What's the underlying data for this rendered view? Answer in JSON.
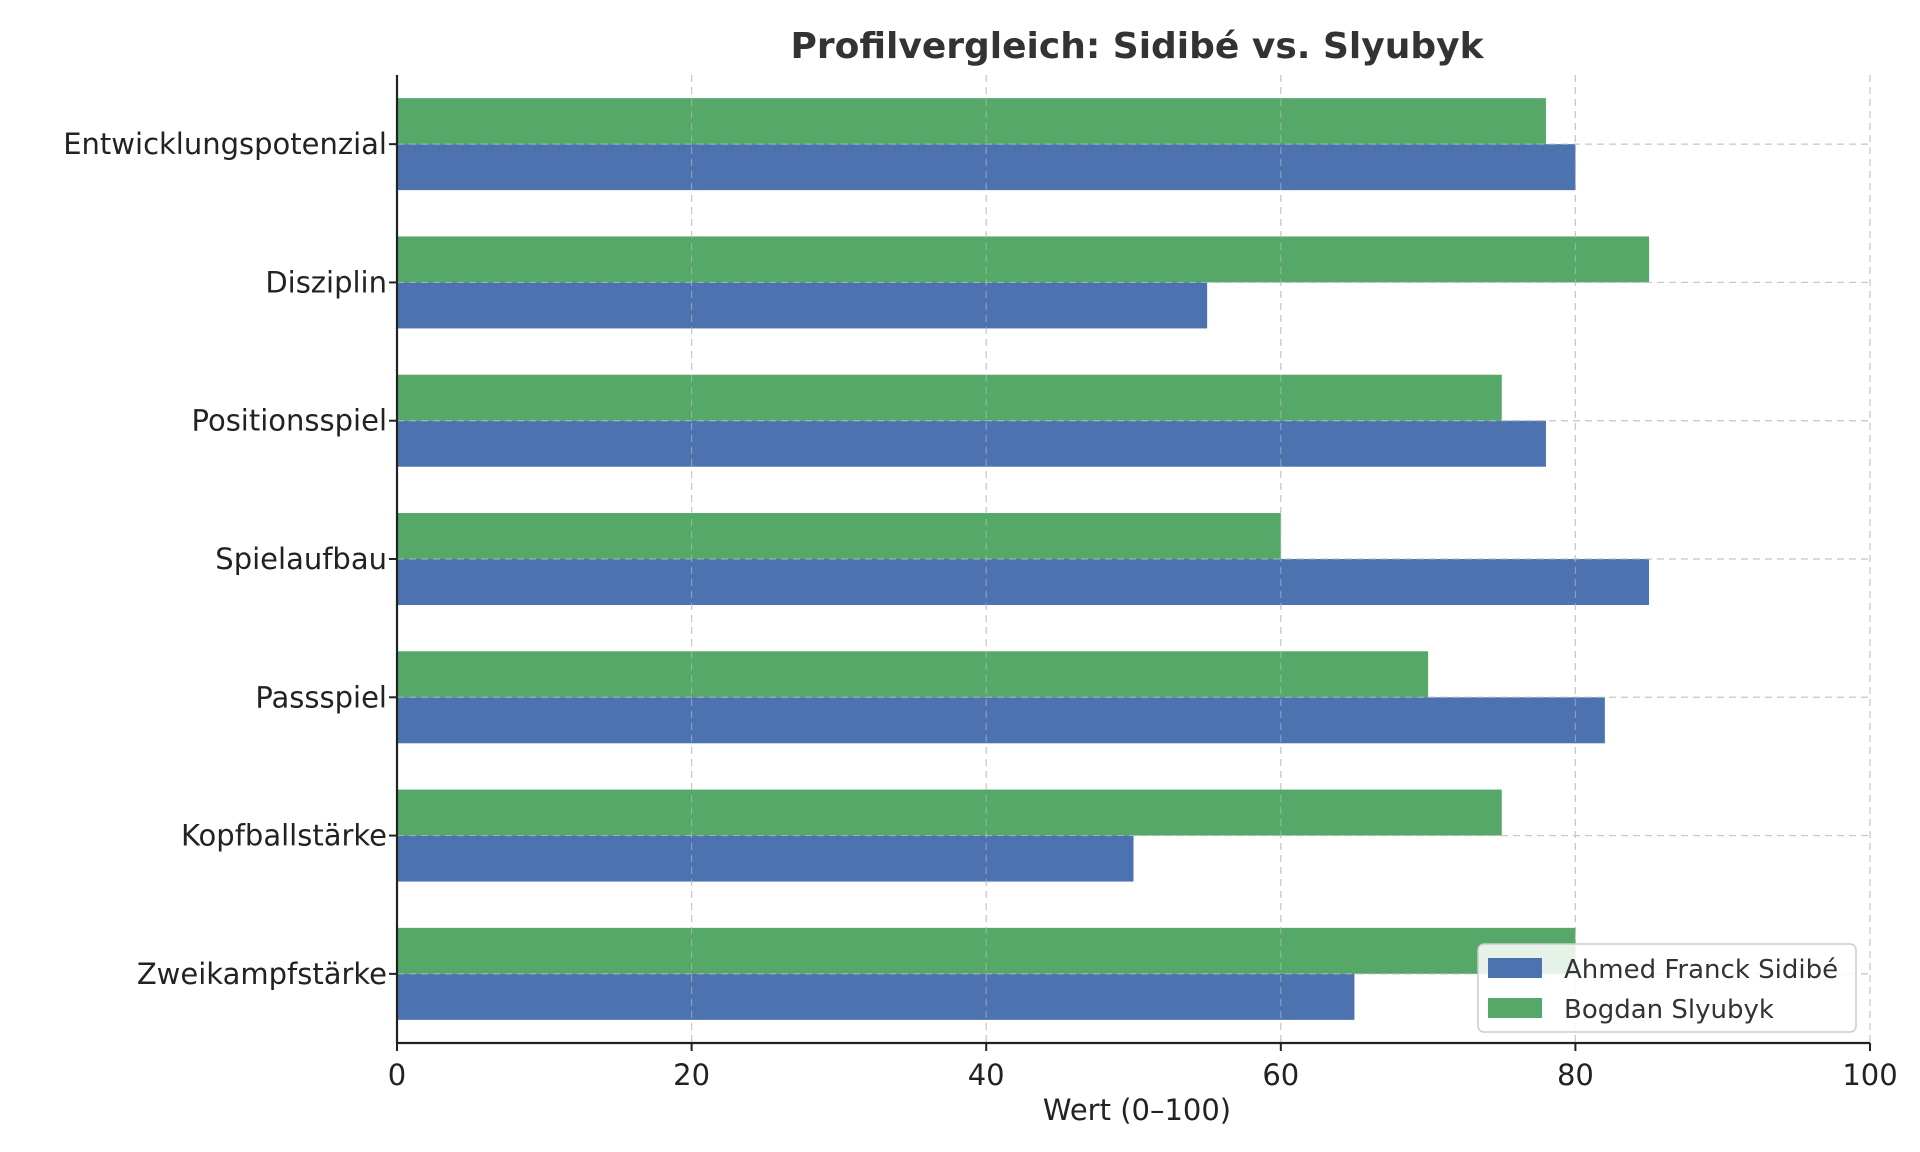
{
  "chart_data": {
    "type": "bar",
    "orientation": "horizontal",
    "title": "Profilvergleich: Sidibé vs. Slyubyk",
    "xlabel": "Wert (0–100)",
    "ylabel": "",
    "xlim": [
      0,
      100
    ],
    "xticks": [
      0,
      20,
      40,
      60,
      80,
      100
    ],
    "grid": true,
    "legend_position": "bottom-right",
    "categories": [
      "Entwicklungspotenzial",
      "Disziplin",
      "Positionsspiel",
      "Spielaufbau",
      "Passspiel",
      "Kopfballstärke",
      "Zweikampfstärke"
    ],
    "series": [
      {
        "name": "Ahmed Franck Sidibé",
        "color": "#4c72b0",
        "values": [
          80,
          55,
          78,
          85,
          82,
          50,
          65
        ]
      },
      {
        "name": "Bogdan Slyubyk",
        "color": "#55a868",
        "values": [
          78,
          85,
          75,
          60,
          70,
          75,
          80
        ]
      }
    ]
  }
}
